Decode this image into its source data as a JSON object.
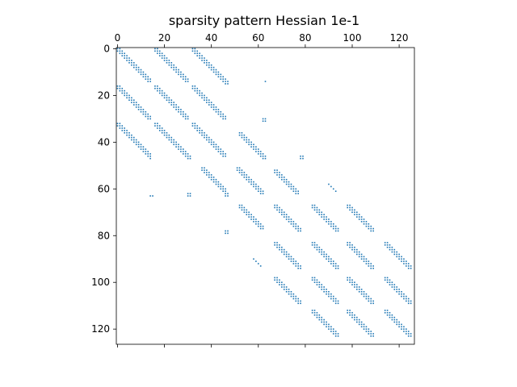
{
  "chart_data": {
    "type": "scatter",
    "title": "sparsity pattern Hessian 1e-1",
    "xlabel": "",
    "ylabel": "",
    "x_ticks": [
      0,
      20,
      40,
      60,
      80,
      100,
      120
    ],
    "y_ticks": [
      0,
      20,
      40,
      60,
      80,
      100,
      120
    ],
    "xlim": [
      -0.5,
      126.5
    ],
    "ylim": [
      126.5,
      -0.5
    ],
    "x_axis_position": "top",
    "y_axis_inverted": true,
    "grid": false,
    "marker_color": "#1f77b4",
    "nonzero_pattern": {
      "diagonal_bands": [
        {
          "row_start": 0,
          "row_end": 14,
          "col_start": 0,
          "col_end": 14
        },
        {
          "row_start": 0,
          "row_end": 14,
          "col_start": 16,
          "col_end": 30
        },
        {
          "row_start": 0,
          "row_end": 14,
          "col_start": 32,
          "col_end": 46
        },
        {
          "row_start": 16,
          "row_end": 30,
          "col_start": 0,
          "col_end": 14
        },
        {
          "row_start": 16,
          "row_end": 30,
          "col_start": 16,
          "col_end": 30
        },
        {
          "row_start": 16,
          "row_end": 30,
          "col_start": 32,
          "col_end": 46
        },
        {
          "row_start": 32,
          "row_end": 46,
          "col_start": 0,
          "col_end": 14
        },
        {
          "row_start": 32,
          "row_end": 46,
          "col_start": 16,
          "col_end": 30
        },
        {
          "row_start": 32,
          "row_end": 46,
          "col_start": 32,
          "col_end": 46
        },
        {
          "row_start": 36,
          "row_end": 46,
          "col_start": 52,
          "col_end": 62
        },
        {
          "row_start": 51,
          "row_end": 62,
          "col_start": 36,
          "col_end": 46
        },
        {
          "row_start": 51,
          "row_end": 62,
          "col_start": 51,
          "col_end": 62
        },
        {
          "row_start": 52,
          "row_end": 62,
          "col_start": 67,
          "col_end": 78
        },
        {
          "row_start": 67,
          "row_end": 78,
          "col_start": 52,
          "col_end": 62
        },
        {
          "row_start": 67,
          "row_end": 78,
          "col_start": 67,
          "col_end": 78
        },
        {
          "row_start": 67,
          "row_end": 78,
          "col_start": 83,
          "col_end": 94
        },
        {
          "row_start": 67,
          "row_end": 78,
          "col_start": 98,
          "col_end": 109
        },
        {
          "row_start": 83,
          "row_end": 94,
          "col_start": 67,
          "col_end": 78
        },
        {
          "row_start": 83,
          "row_end": 94,
          "col_start": 83,
          "col_end": 94
        },
        {
          "row_start": 83,
          "row_end": 94,
          "col_start": 98,
          "col_end": 109
        },
        {
          "row_start": 83,
          "row_end": 94,
          "col_start": 114,
          "col_end": 125
        },
        {
          "row_start": 98,
          "row_end": 109,
          "col_start": 67,
          "col_end": 78
        },
        {
          "row_start": 98,
          "row_end": 109,
          "col_start": 83,
          "col_end": 94
        },
        {
          "row_start": 98,
          "row_end": 109,
          "col_start": 98,
          "col_end": 109
        },
        {
          "row_start": 98,
          "row_end": 109,
          "col_start": 114,
          "col_end": 125
        },
        {
          "row_start": 112,
          "row_end": 123,
          "col_start": 83,
          "col_end": 94
        },
        {
          "row_start": 112,
          "row_end": 123,
          "col_start": 98,
          "col_end": 109
        },
        {
          "row_start": 112,
          "row_end": 123,
          "col_start": 114,
          "col_end": 125
        }
      ],
      "extra_points": [
        [
          14,
          46
        ],
        [
          14,
          47
        ],
        [
          15,
          46
        ],
        [
          15,
          47
        ],
        [
          14,
          63
        ],
        [
          30,
          62
        ],
        [
          30,
          63
        ],
        [
          31,
          62
        ],
        [
          31,
          63
        ],
        [
          46,
          14
        ],
        [
          47,
          14
        ],
        [
          46,
          30
        ],
        [
          46,
          31
        ],
        [
          47,
          30
        ],
        [
          47,
          31
        ],
        [
          46,
          62
        ],
        [
          46,
          63
        ],
        [
          47,
          62
        ],
        [
          47,
          63
        ],
        [
          46,
          78
        ],
        [
          46,
          79
        ],
        [
          47,
          78
        ],
        [
          47,
          79
        ],
        [
          62,
          46
        ],
        [
          62,
          47
        ],
        [
          63,
          46
        ],
        [
          63,
          47
        ],
        [
          63,
          14
        ],
        [
          63,
          15
        ],
        [
          62,
          30
        ],
        [
          62,
          31
        ],
        [
          63,
          30
        ],
        [
          63,
          31
        ],
        [
          78,
          46
        ],
        [
          78,
          47
        ],
        [
          79,
          46
        ],
        [
          79,
          47
        ],
        [
          58,
          90
        ],
        [
          59,
          91
        ],
        [
          60,
          92
        ],
        [
          61,
          93
        ],
        [
          90,
          58
        ],
        [
          91,
          59
        ],
        [
          92,
          60
        ],
        [
          93,
          61
        ]
      ]
    }
  }
}
